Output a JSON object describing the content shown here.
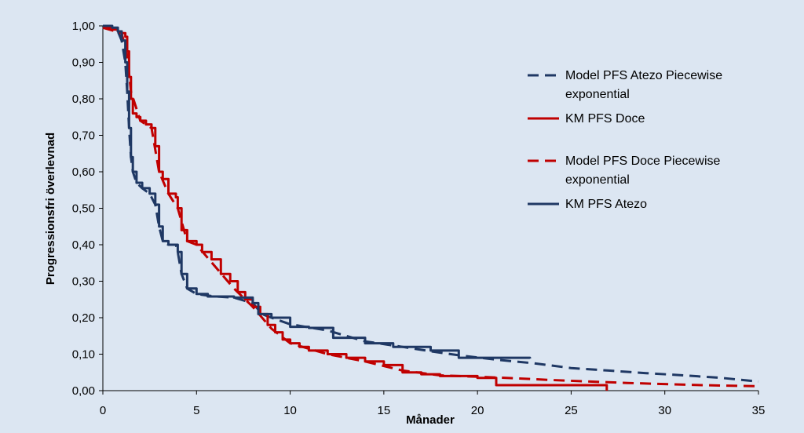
{
  "chart_data": {
    "type": "line",
    "xlabel": "Månader",
    "ylabel": "Progressionsfri överlevnad",
    "xlim": [
      0,
      35
    ],
    "ylim": [
      0,
      1
    ],
    "x_ticks": [
      "0",
      "5",
      "10",
      "15",
      "20",
      "25",
      "30",
      "35"
    ],
    "y_ticks": [
      "0,00",
      "0,10",
      "0,20",
      "0,30",
      "0,40",
      "0,50",
      "0,60",
      "0,70",
      "0,80",
      "0,90",
      "1,00"
    ],
    "grid": false,
    "legend_position": "right",
    "series": [
      {
        "name": "Model PFS Atezo Piecewise exponential",
        "name_lines": [
          "Model PFS Atezo Piecewise",
          "exponential"
        ],
        "color": "#1f3864",
        "style": "dashed",
        "step": false,
        "points": [
          [
            0,
            1.0
          ],
          [
            0.5,
            0.995
          ],
          [
            0.8,
            0.985
          ],
          [
            1.0,
            0.96
          ],
          [
            1.2,
            0.9
          ],
          [
            1.3,
            0.82
          ],
          [
            1.4,
            0.72
          ],
          [
            1.5,
            0.64
          ],
          [
            1.6,
            0.6
          ],
          [
            1.8,
            0.57
          ],
          [
            2.1,
            0.555
          ],
          [
            2.5,
            0.54
          ],
          [
            2.8,
            0.51
          ],
          [
            3.0,
            0.45
          ],
          [
            3.2,
            0.41
          ],
          [
            3.5,
            0.4
          ],
          [
            3.9,
            0.4
          ],
          [
            4.0,
            0.38
          ],
          [
            4.2,
            0.32
          ],
          [
            4.5,
            0.28
          ],
          [
            5.0,
            0.265
          ],
          [
            6,
            0.258
          ],
          [
            7,
            0.255
          ],
          [
            8,
            0.24
          ],
          [
            8.5,
            0.21
          ],
          [
            9,
            0.2
          ],
          [
            10,
            0.182
          ],
          [
            12,
            0.165
          ],
          [
            14,
            0.135
          ],
          [
            16,
            0.12
          ],
          [
            17.5,
            0.108
          ],
          [
            19,
            0.097
          ],
          [
            21,
            0.085
          ],
          [
            23,
            0.075
          ],
          [
            25,
            0.062
          ],
          [
            27,
            0.055
          ],
          [
            29,
            0.048
          ],
          [
            31,
            0.042
          ],
          [
            33,
            0.035
          ],
          [
            35,
            0.025
          ]
        ]
      },
      {
        "name": "KM PFS Doce",
        "color": "#c00000",
        "style": "solid",
        "step": true,
        "points": [
          [
            0,
            0.995
          ],
          [
            0.5,
            0.99
          ],
          [
            0.8,
            0.985
          ],
          [
            1.0,
            0.98
          ],
          [
            1.2,
            0.97
          ],
          [
            1.3,
            0.93
          ],
          [
            1.4,
            0.86
          ],
          [
            1.5,
            0.8
          ],
          [
            1.6,
            0.76
          ],
          [
            1.8,
            0.75
          ],
          [
            2.0,
            0.74
          ],
          [
            2.3,
            0.73
          ],
          [
            2.6,
            0.72
          ],
          [
            2.8,
            0.67
          ],
          [
            3.0,
            0.6
          ],
          [
            3.2,
            0.58
          ],
          [
            3.5,
            0.54
          ],
          [
            3.9,
            0.53
          ],
          [
            4.0,
            0.5
          ],
          [
            4.2,
            0.44
          ],
          [
            4.5,
            0.41
          ],
          [
            5.0,
            0.4
          ],
          [
            5.3,
            0.38
          ],
          [
            5.8,
            0.36
          ],
          [
            6.3,
            0.32
          ],
          [
            6.8,
            0.3
          ],
          [
            7.2,
            0.27
          ],
          [
            7.6,
            0.25
          ],
          [
            8.0,
            0.23
          ],
          [
            8.4,
            0.21
          ],
          [
            8.8,
            0.18
          ],
          [
            9.2,
            0.16
          ],
          [
            9.6,
            0.14
          ],
          [
            10.0,
            0.13
          ],
          [
            10.5,
            0.12
          ],
          [
            11.0,
            0.11
          ],
          [
            12.0,
            0.1
          ],
          [
            13.0,
            0.09
          ],
          [
            14.0,
            0.08
          ],
          [
            15.0,
            0.07
          ],
          [
            16.0,
            0.05
          ],
          [
            17.0,
            0.045
          ],
          [
            18.0,
            0.04
          ],
          [
            20.0,
            0.035
          ],
          [
            21.0,
            0.015
          ],
          [
            26.9,
            0.015
          ],
          [
            26.9,
            0.0
          ]
        ]
      },
      {
        "name": "Model PFS Doce Piecewise exponential",
        "name_lines": [
          "Model PFS Doce Piecewise",
          "exponential"
        ],
        "color": "#c00000",
        "style": "dashed",
        "step": false,
        "points": [
          [
            0,
            0.995
          ],
          [
            1.0,
            0.98
          ],
          [
            1.3,
            0.92
          ],
          [
            1.5,
            0.82
          ],
          [
            2.0,
            0.74
          ],
          [
            2.6,
            0.72
          ],
          [
            3.0,
            0.6
          ],
          [
            3.5,
            0.54
          ],
          [
            4.0,
            0.5
          ],
          [
            4.5,
            0.41
          ],
          [
            5.0,
            0.4
          ],
          [
            6.0,
            0.34
          ],
          [
            7.0,
            0.28
          ],
          [
            8.0,
            0.23
          ],
          [
            9.0,
            0.17
          ],
          [
            10.0,
            0.13
          ],
          [
            12.0,
            0.1
          ],
          [
            14.0,
            0.08
          ],
          [
            16.0,
            0.055
          ],
          [
            18.0,
            0.042
          ],
          [
            20.0,
            0.038
          ],
          [
            22.0,
            0.034
          ],
          [
            24.0,
            0.029
          ],
          [
            26.0,
            0.025
          ],
          [
            28.0,
            0.021
          ],
          [
            30.0,
            0.018
          ],
          [
            32.0,
            0.015
          ],
          [
            35.0,
            0.012
          ]
        ]
      },
      {
        "name": "KM PFS Atezo",
        "color": "#1f3864",
        "style": "solid",
        "step": true,
        "points": [
          [
            0,
            1.0
          ],
          [
            0.5,
            0.995
          ],
          [
            0.8,
            0.985
          ],
          [
            1.0,
            0.96
          ],
          [
            1.2,
            0.9
          ],
          [
            1.3,
            0.82
          ],
          [
            1.4,
            0.72
          ],
          [
            1.5,
            0.64
          ],
          [
            1.6,
            0.6
          ],
          [
            1.8,
            0.57
          ],
          [
            2.1,
            0.555
          ],
          [
            2.5,
            0.54
          ],
          [
            2.8,
            0.51
          ],
          [
            3.0,
            0.45
          ],
          [
            3.2,
            0.41
          ],
          [
            3.5,
            0.4
          ],
          [
            3.9,
            0.4
          ],
          [
            4.0,
            0.38
          ],
          [
            4.2,
            0.32
          ],
          [
            4.5,
            0.28
          ],
          [
            5.0,
            0.265
          ],
          [
            5.6,
            0.258
          ],
          [
            7.0,
            0.255
          ],
          [
            8.0,
            0.24
          ],
          [
            8.3,
            0.21
          ],
          [
            9.0,
            0.2
          ],
          [
            10.0,
            0.175
          ],
          [
            11.0,
            0.172
          ],
          [
            12.3,
            0.145
          ],
          [
            14.0,
            0.13
          ],
          [
            15.5,
            0.12
          ],
          [
            17.5,
            0.11
          ],
          [
            19.0,
            0.09
          ],
          [
            22.8,
            0.088
          ]
        ]
      }
    ]
  }
}
